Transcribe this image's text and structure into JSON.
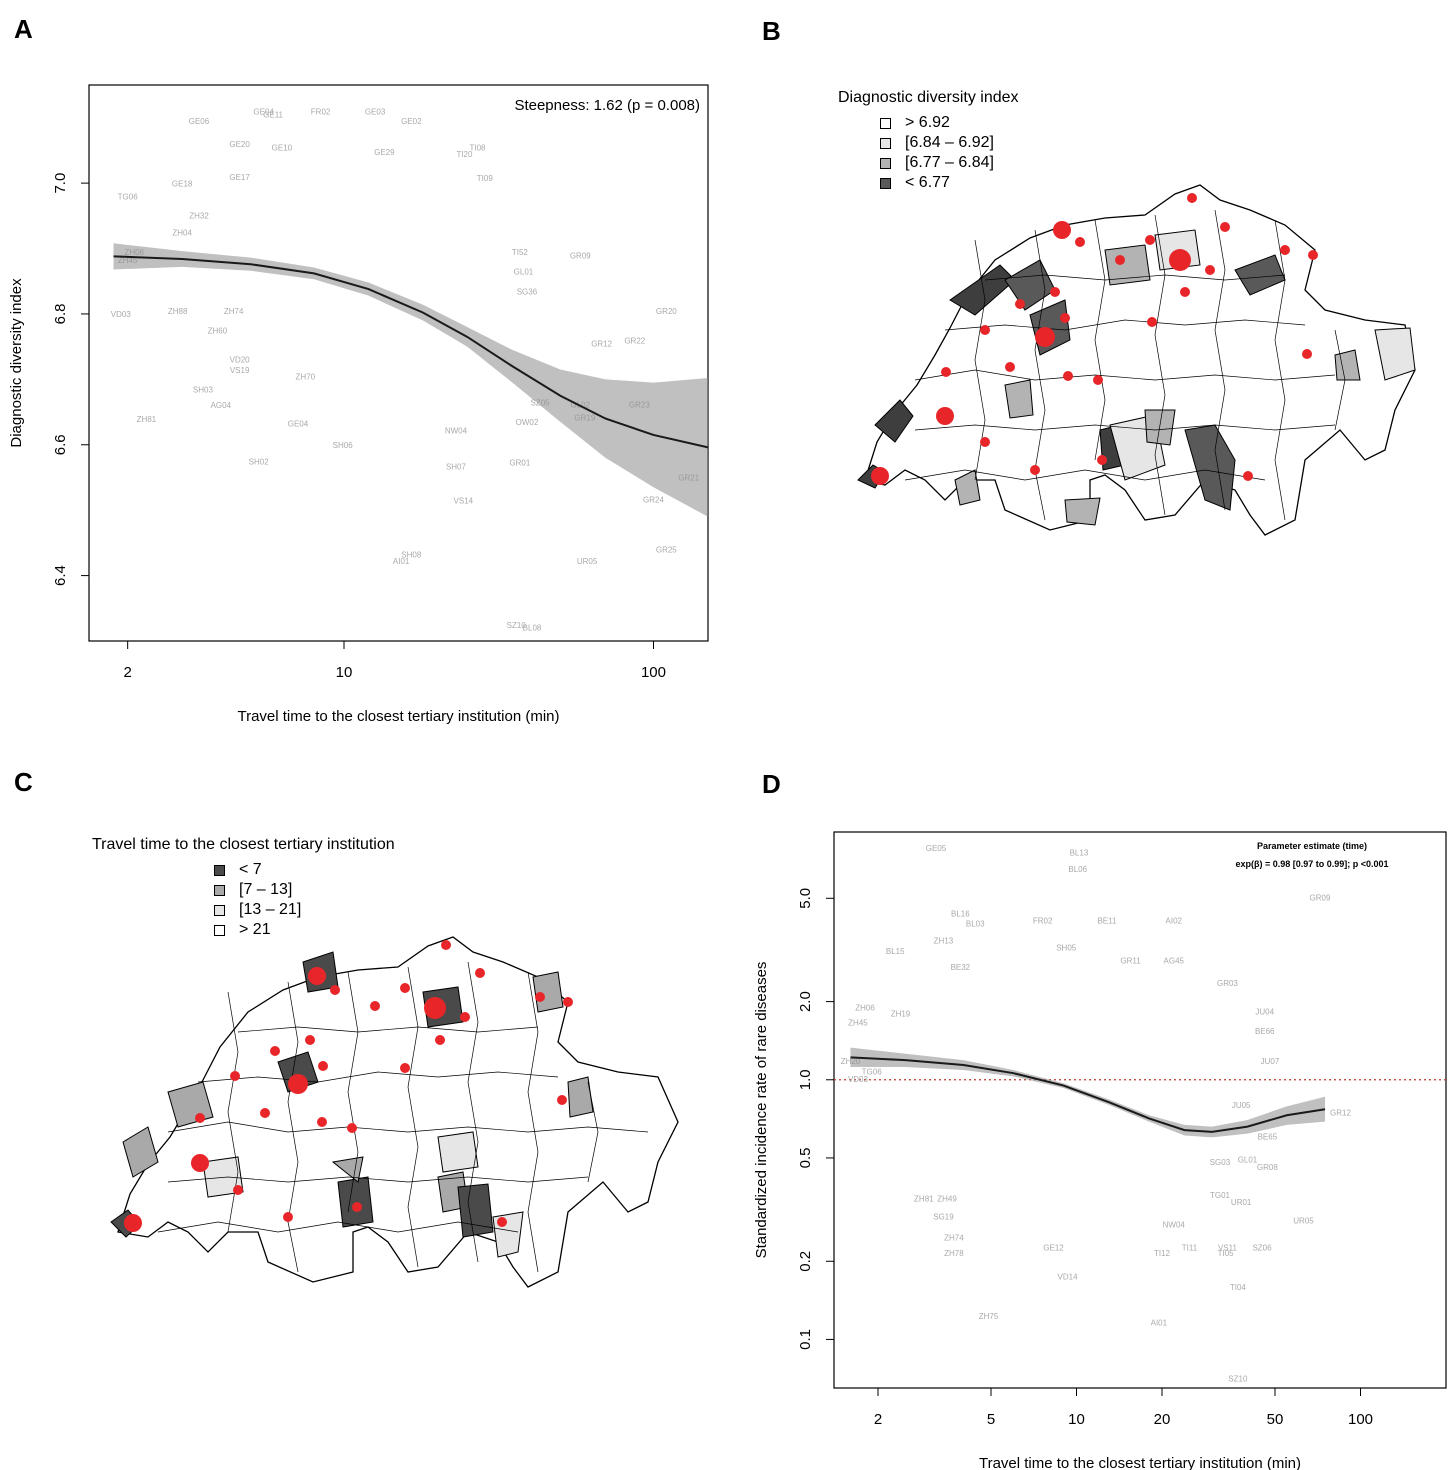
{
  "panels": {
    "a": "A",
    "b": "B",
    "c": "C",
    "d": "D"
  },
  "chart_data": [
    {
      "type": "scatter",
      "panel": "A",
      "xlabel": "Travel time to the closest tertiary institution (min)",
      "ylabel": "Diagnostic diversity index",
      "xscale": "log",
      "xlim": [
        1.5,
        150
      ],
      "ylim": [
        6.3,
        7.15
      ],
      "xticks": [
        "2",
        "10",
        "100"
      ],
      "yticks": [
        "6.4",
        "6.6",
        "6.8",
        "7.0"
      ],
      "annotation": "Steepness: 1.62 (p = 0.008)",
      "grid": false,
      "points": [
        {
          "label": "GE06",
          "x": 3.4,
          "y": 7.09
        },
        {
          "label": "GE04",
          "x": 5.5,
          "y": 7.105
        },
        {
          "label": "GE11",
          "x": 5.9,
          "y": 7.1
        },
        {
          "label": "FR02",
          "x": 8.4,
          "y": 7.105
        },
        {
          "label": "GE03",
          "x": 12.6,
          "y": 7.105
        },
        {
          "label": "GE02",
          "x": 16.5,
          "y": 7.09
        },
        {
          "label": "GE20",
          "x": 4.6,
          "y": 7.055
        },
        {
          "label": "GE10",
          "x": 6.3,
          "y": 7.05
        },
        {
          "label": "TI08",
          "x": 27,
          "y": 7.05
        },
        {
          "label": "TI20",
          "x": 24.5,
          "y": 7.04
        },
        {
          "label": "GE29",
          "x": 13.5,
          "y": 7.043
        },
        {
          "label": "GE17",
          "x": 4.6,
          "y": 7.005
        },
        {
          "label": "GE18",
          "x": 3.0,
          "y": 6.995
        },
        {
          "label": "TI09",
          "x": 28.5,
          "y": 7.003
        },
        {
          "label": "TG06",
          "x": 2.0,
          "y": 6.975
        },
        {
          "label": "ZH32",
          "x": 3.4,
          "y": 6.946
        },
        {
          "label": "ZH04",
          "x": 3.0,
          "y": 6.92
        },
        {
          "label": "ZH06",
          "x": 2.1,
          "y": 6.89
        },
        {
          "label": "ZH45",
          "x": 2.0,
          "y": 6.878
        },
        {
          "label": "TI52",
          "x": 37,
          "y": 6.89
        },
        {
          "label": "GR09",
          "x": 58,
          "y": 6.885
        },
        {
          "label": "GL01",
          "x": 38,
          "y": 6.86
        },
        {
          "label": "SG36",
          "x": 39,
          "y": 6.83
        },
        {
          "label": "ZH88",
          "x": 2.9,
          "y": 6.8
        },
        {
          "label": "VD03",
          "x": 1.9,
          "y": 6.795
        },
        {
          "label": "ZH74",
          "x": 4.4,
          "y": 6.8
        },
        {
          "label": "ZH60",
          "x": 3.9,
          "y": 6.77
        },
        {
          "label": "GR20",
          "x": 110,
          "y": 6.8
        },
        {
          "label": "GR22",
          "x": 87,
          "y": 6.755
        },
        {
          "label": "GR12",
          "x": 68,
          "y": 6.75
        },
        {
          "label": "VD20",
          "x": 4.6,
          "y": 6.726
        },
        {
          "label": "VS19",
          "x": 4.6,
          "y": 6.71
        },
        {
          "label": "ZH70",
          "x": 7.5,
          "y": 6.7
        },
        {
          "label": "SH03",
          "x": 3.5,
          "y": 6.68
        },
        {
          "label": "AG04",
          "x": 4.0,
          "y": 6.656
        },
        {
          "label": "ZH81",
          "x": 2.3,
          "y": 6.635
        },
        {
          "label": "GE04",
          "x": 7.1,
          "y": 6.628
        },
        {
          "label": "GL02",
          "x": 58,
          "y": 6.657
        },
        {
          "label": "GR23",
          "x": 90,
          "y": 6.657
        },
        {
          "label": "GR19",
          "x": 60,
          "y": 6.637
        },
        {
          "label": "SZ05",
          "x": 43,
          "y": 6.66
        },
        {
          "label": "NW04",
          "x": 23,
          "y": 6.617
        },
        {
          "label": "OW02",
          "x": 39,
          "y": 6.63
        },
        {
          "label": "SH06",
          "x": 9.9,
          "y": 6.595
        },
        {
          "label": "SH02",
          "x": 5.3,
          "y": 6.57
        },
        {
          "label": "SH07",
          "x": 23,
          "y": 6.562
        },
        {
          "label": "GR01",
          "x": 37,
          "y": 6.568
        },
        {
          "label": "VS14",
          "x": 24.3,
          "y": 6.51
        },
        {
          "label": "GR21",
          "x": 130,
          "y": 6.545
        },
        {
          "label": "GR24",
          "x": 100,
          "y": 6.512
        },
        {
          "label": "SH08",
          "x": 16.5,
          "y": 6.428
        },
        {
          "label": "AI01",
          "x": 15.3,
          "y": 6.418
        },
        {
          "label": "UR05",
          "x": 61,
          "y": 6.418
        },
        {
          "label": "GR25",
          "x": 110,
          "y": 6.435
        },
        {
          "label": "SZ10",
          "x": 36,
          "y": 6.32
        },
        {
          "label": "BL08",
          "x": 40.5,
          "y": 6.316
        }
      ],
      "fit": {
        "x": [
          1.8,
          3,
          5,
          8,
          12,
          18,
          25,
          35,
          50,
          70,
          100,
          150
        ],
        "y": [
          6.888,
          6.884,
          6.876,
          6.862,
          6.838,
          6.802,
          6.765,
          6.72,
          6.675,
          6.64,
          6.615,
          6.596
        ],
        "ci_lower": [
          6.868,
          6.872,
          6.866,
          6.853,
          6.828,
          6.79,
          6.75,
          6.695,
          6.635,
          6.58,
          6.535,
          6.49
        ],
        "ci_upper": [
          6.908,
          6.896,
          6.886,
          6.871,
          6.848,
          6.814,
          6.78,
          6.745,
          6.715,
          6.7,
          6.695,
          6.702
        ]
      }
    },
    {
      "type": "scatter",
      "panel": "D",
      "xlabel": "Travel time to the closest tertiary institution (min)",
      "ylabel": "Standardized incidence rate of rare diseases",
      "xscale": "log",
      "yscale": "log",
      "xlim": [
        1.4,
        200
      ],
      "ylim": [
        0.065,
        9
      ],
      "xticks": [
        "2",
        "5",
        "10",
        "20",
        "50",
        "100"
      ],
      "yticks": [
        "0.1",
        "0.2",
        "0.5",
        "1.0",
        "2.0",
        "5.0"
      ],
      "reference_line_y": 1.0,
      "annotation_title": "Parameter estimate (time)",
      "annotation": "exp(β) = 0.98 [0.97 to 0.99]; p <0.001",
      "grid": false,
      "points": [
        {
          "label": "GE05",
          "x": 3.2,
          "y": 7.6
        },
        {
          "label": "BL13",
          "x": 10.2,
          "y": 7.3
        },
        {
          "label": "BL06",
          "x": 10.1,
          "y": 6.3
        },
        {
          "label": "GR09",
          "x": 72,
          "y": 4.9
        },
        {
          "label": "BL16",
          "x": 3.9,
          "y": 4.25
        },
        {
          "label": "BL03",
          "x": 4.4,
          "y": 3.9
        },
        {
          "label": "FR02",
          "x": 7.6,
          "y": 4.0
        },
        {
          "label": "BE11",
          "x": 12.8,
          "y": 4.0
        },
        {
          "label": "AI02",
          "x": 22,
          "y": 4.0
        },
        {
          "label": "ZH13",
          "x": 3.4,
          "y": 3.35
        },
        {
          "label": "BL15",
          "x": 2.3,
          "y": 3.05
        },
        {
          "label": "SH05",
          "x": 9.2,
          "y": 3.15
        },
        {
          "label": "BE32",
          "x": 3.9,
          "y": 2.65
        },
        {
          "label": "GR11",
          "x": 15.5,
          "y": 2.8
        },
        {
          "label": "AG45",
          "x": 22,
          "y": 2.8
        },
        {
          "label": "GR03",
          "x": 34,
          "y": 2.3
        },
        {
          "label": "ZH06",
          "x": 1.8,
          "y": 1.85
        },
        {
          "label": "ZH19",
          "x": 2.4,
          "y": 1.75
        },
        {
          "label": "ZH45",
          "x": 1.7,
          "y": 1.62
        },
        {
          "label": "JU04",
          "x": 46,
          "y": 1.78
        },
        {
          "label": "BE66",
          "x": 46,
          "y": 1.5
        },
        {
          "label": "JU07",
          "x": 48,
          "y": 1.15
        },
        {
          "label": "ZH20",
          "x": 1.6,
          "y": 1.15
        },
        {
          "label": "TG06",
          "x": 1.9,
          "y": 1.05
        },
        {
          "label": "VD03",
          "x": 1.7,
          "y": 0.98
        },
        {
          "label": "JU05",
          "x": 38,
          "y": 0.78
        },
        {
          "label": "GR12",
          "x": 85,
          "y": 0.73
        },
        {
          "label": "BE65",
          "x": 47,
          "y": 0.59
        },
        {
          "label": "GL01",
          "x": 40,
          "y": 0.48
        },
        {
          "label": "GR08",
          "x": 47,
          "y": 0.45
        },
        {
          "label": "SG03",
          "x": 32,
          "y": 0.47
        },
        {
          "label": "ZH81",
          "x": 2.9,
          "y": 0.34
        },
        {
          "label": "ZH49",
          "x": 3.5,
          "y": 0.34
        },
        {
          "label": "SG19",
          "x": 3.4,
          "y": 0.29
        },
        {
          "label": "TG01",
          "x": 32,
          "y": 0.35
        },
        {
          "label": "UR01",
          "x": 38,
          "y": 0.33
        },
        {
          "label": "UR05",
          "x": 63,
          "y": 0.28
        },
        {
          "label": "NW04",
          "x": 22,
          "y": 0.27
        },
        {
          "label": "ZH74",
          "x": 3.7,
          "y": 0.24
        },
        {
          "label": "ZH78",
          "x": 3.7,
          "y": 0.21
        },
        {
          "label": "GE12",
          "x": 8.3,
          "y": 0.22
        },
        {
          "label": "TI12",
          "x": 20,
          "y": 0.21
        },
        {
          "label": "TI11",
          "x": 25,
          "y": 0.22
        },
        {
          "label": "VS11",
          "x": 34,
          "y": 0.22
        },
        {
          "label": "TI05",
          "x": 33.5,
          "y": 0.21
        },
        {
          "label": "SZ06",
          "x": 45,
          "y": 0.22
        },
        {
          "label": "VD14",
          "x": 9.3,
          "y": 0.17
        },
        {
          "label": "TI04",
          "x": 37,
          "y": 0.155
        },
        {
          "label": "ZH75",
          "x": 4.9,
          "y": 0.12
        },
        {
          "label": "AI01",
          "x": 19.5,
          "y": 0.113
        },
        {
          "label": "SZ10",
          "x": 37,
          "y": 0.069
        }
      ],
      "fit": {
        "x": [
          1.6,
          2.5,
          4,
          6,
          9,
          13,
          18,
          24,
          30,
          40,
          55,
          75
        ],
        "y": [
          1.22,
          1.19,
          1.14,
          1.06,
          0.95,
          0.82,
          0.71,
          0.64,
          0.63,
          0.66,
          0.73,
          0.77
        ],
        "ci_lower": [
          1.12,
          1.12,
          1.09,
          1.03,
          0.93,
          0.8,
          0.69,
          0.61,
          0.6,
          0.62,
          0.67,
          0.69
        ],
        "ci_upper": [
          1.33,
          1.26,
          1.19,
          1.09,
          0.97,
          0.84,
          0.73,
          0.67,
          0.66,
          0.7,
          0.79,
          0.86
        ]
      }
    }
  ],
  "maps": {
    "b": {
      "legend_title": "Diagnostic diversity index",
      "classes": [
        {
          "label": "> 6.92",
          "color": "#ffffff"
        },
        {
          "label": "[6.84 – 6.92]",
          "color": "#e6e6e6"
        },
        {
          "label": "[6.77 – 6.84]",
          "color": "#b3b3b3"
        },
        {
          "label": "< 6.77",
          "color": "#595959"
        }
      ],
      "marker_color": "#e8262a"
    },
    "c": {
      "legend_title": "Travel time to the closest tertiary institution",
      "classes": [
        {
          "label": "< 7",
          "color": "#4a4a4a"
        },
        {
          "label": "[7 – 13]",
          "color": "#a9a9a9"
        },
        {
          "label": "[13 – 21]",
          "color": "#e6e6e6"
        },
        {
          "label": "> 21",
          "color": "#ffffff"
        }
      ],
      "marker_color": "#e8262a"
    }
  }
}
